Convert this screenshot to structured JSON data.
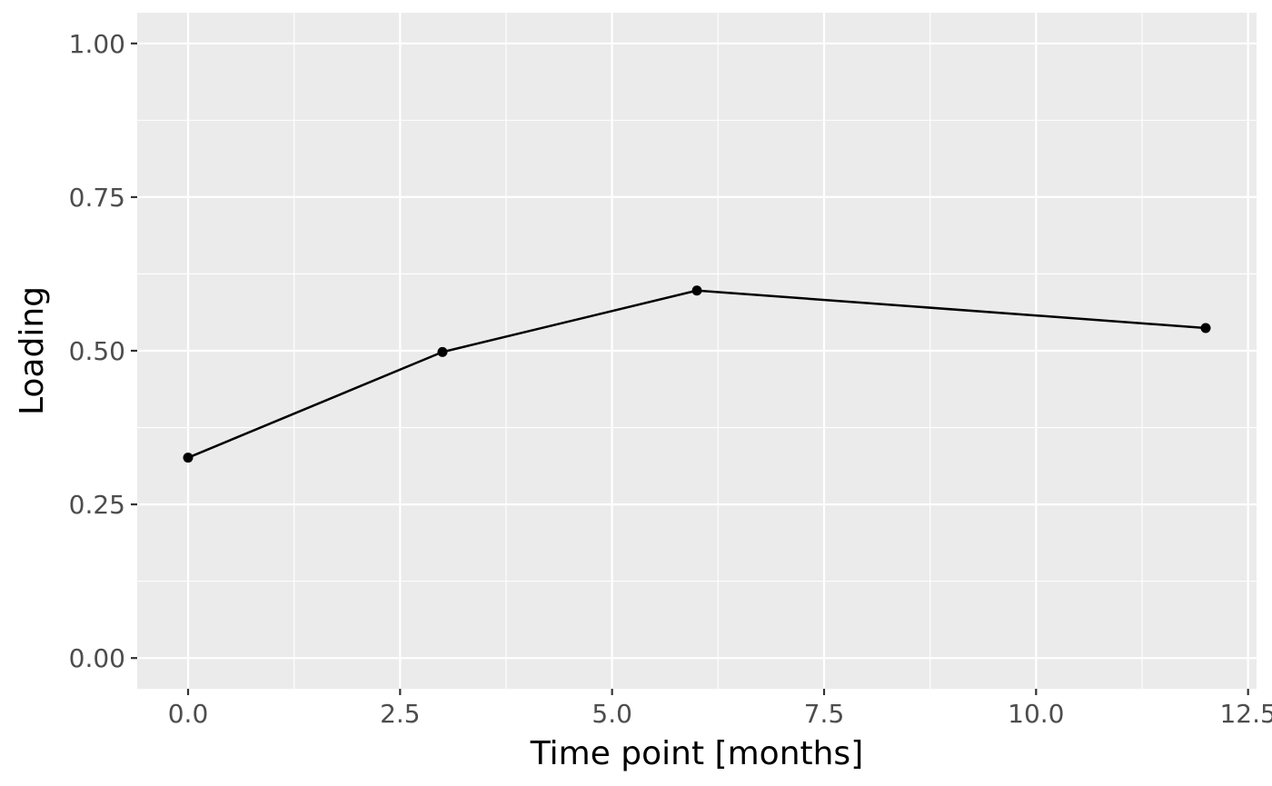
{
  "chart_data": {
    "type": "line",
    "title": "",
    "xlabel": "Time point [months]",
    "ylabel": "Loading",
    "xlim": [
      -0.6,
      12.6
    ],
    "ylim": [
      -0.05,
      1.05
    ],
    "x_ticks": [
      0.0,
      2.5,
      5.0,
      7.5,
      10.0,
      12.5
    ],
    "x_tick_labels": [
      "0.0",
      "2.5",
      "5.0",
      "7.5",
      "10.0",
      "12.5"
    ],
    "x_minor_ticks": [
      1.25,
      3.75,
      6.25,
      8.75,
      11.25
    ],
    "y_ticks": [
      0.0,
      0.25,
      0.5,
      0.75,
      1.0
    ],
    "y_tick_labels": [
      "0.00",
      "0.25",
      "0.50",
      "0.75",
      "1.00"
    ],
    "y_minor_ticks": [
      0.125,
      0.375,
      0.625,
      0.875
    ],
    "grid": true,
    "legend": "none",
    "colors": {
      "panel_background": "#ebebeb",
      "grid": "#ffffff",
      "line": "#000000",
      "point": "#000000",
      "tick_text": "#4d4d4d",
      "tick_mark": "#333333"
    },
    "series": [
      {
        "x": [
          0,
          3,
          6,
          12
        ],
        "y": [
          0.326,
          0.498,
          0.598,
          0.537
        ]
      }
    ]
  }
}
